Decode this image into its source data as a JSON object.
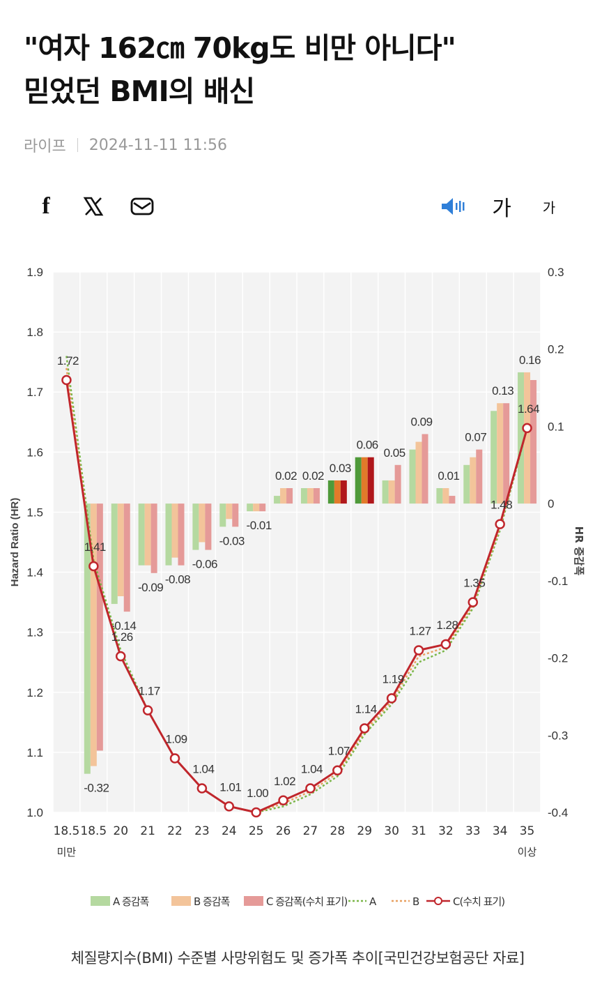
{
  "article": {
    "title_line1": "\"여자 162㎝ 70kg도 비만 아니다\"",
    "title_line2": "믿었던 BMI의 배신",
    "category": "라이프",
    "datetime": "2024-11-11 11:56"
  },
  "toolbar": {
    "facebook": "f",
    "x": "𝕏",
    "font_large": "가",
    "font_small": "가"
  },
  "caption": "체질량지수(BMI) 수준별 사망위험도 및 증가폭 추이[국민건강보험공단 자료]",
  "colors": {
    "a_bar": "#b5d9a0",
    "b_bar": "#f3c49a",
    "c_bar": "#e59a98",
    "line_a": "#7ab648",
    "line_b": "#e8a060",
    "line_c": "#c0262c"
  },
  "chart_data": {
    "type": "bar+line",
    "categories": [
      "18.5\n미만",
      "18.5",
      "20",
      "21",
      "22",
      "23",
      "24",
      "25",
      "26",
      "27",
      "28",
      "29",
      "30",
      "31",
      "32",
      "33",
      "34",
      "35\n이상"
    ],
    "ylabel": "Hazard Ratio (HR)",
    "y2label": "HR 증감폭",
    "ylim": [
      1.0,
      1.9
    ],
    "y2lim": [
      -0.4,
      0.3
    ],
    "yticks": [
      "1.0",
      "1.1",
      "1.2",
      "1.3",
      "1.4",
      "1.5",
      "1.6",
      "1.7",
      "1.8",
      "1.9"
    ],
    "y2ticks": [
      "-0.4",
      "-0.3",
      "-0.2",
      "-0.1",
      "0",
      "0.1",
      "0.2",
      "0.3"
    ],
    "bar_categories": [
      "18.5",
      "20",
      "21",
      "22",
      "23",
      "24",
      "25",
      "26",
      "27",
      "28",
      "29",
      "30",
      "31",
      "32",
      "33",
      "34",
      "35\n이상"
    ],
    "bars": {
      "A": [
        -0.35,
        -0.13,
        -0.08,
        -0.08,
        -0.06,
        -0.03,
        -0.01,
        0.01,
        0.02,
        0.03,
        0.06,
        0.03,
        0.07,
        0.02,
        0.05,
        0.12,
        0.17
      ],
      "B": [
        -0.34,
        -0.12,
        -0.08,
        -0.07,
        -0.05,
        -0.02,
        -0.01,
        0.02,
        0.02,
        0.03,
        0.06,
        0.03,
        0.08,
        0.02,
        0.06,
        0.13,
        0.17
      ],
      "C": [
        -0.32,
        -0.14,
        -0.09,
        -0.08,
        -0.06,
        -0.03,
        -0.01,
        0.02,
        0.02,
        0.03,
        0.06,
        0.05,
        0.09,
        0.01,
        0.07,
        0.13,
        0.16
      ]
    },
    "bar_labels": [
      "-0.32",
      "-0.14",
      "-0.09",
      "-0.08",
      "-0.06",
      "-0.03",
      "-0.01",
      "0.02",
      "0.02",
      "0.03",
      "0.06",
      "0.05",
      "0.09",
      "0.01",
      "0.07",
      "0.13",
      "0.16"
    ],
    "lines": {
      "A": [
        1.76,
        1.42,
        1.27,
        1.17,
        1.09,
        1.04,
        1.01,
        1.0,
        1.01,
        1.03,
        1.06,
        1.13,
        1.18,
        1.25,
        1.27,
        1.34,
        1.47,
        1.64
      ],
      "B": [
        1.74,
        1.41,
        1.26,
        1.17,
        1.09,
        1.04,
        1.01,
        1.0,
        1.015,
        1.035,
        1.065,
        1.135,
        1.185,
        1.26,
        1.275,
        1.345,
        1.475,
        1.64
      ],
      "C": [
        1.72,
        1.41,
        1.26,
        1.17,
        1.09,
        1.04,
        1.01,
        1.0,
        1.02,
        1.04,
        1.07,
        1.14,
        1.19,
        1.27,
        1.28,
        1.35,
        1.48,
        1.64
      ]
    },
    "line_labels": [
      "1.72",
      "1.41",
      "1.26",
      "1.17",
      "1.09",
      "1.04",
      "1.01",
      "1.00",
      "1.02",
      "1.04",
      "1.07",
      "1.14",
      "1.19",
      "1.27",
      "1.28",
      "1.35",
      "1.48",
      "1.64"
    ],
    "legend": [
      "A 증감폭",
      "B 증감폭",
      "C 증감폭(수치 표기)",
      "A",
      "B",
      "C(수치 표기)"
    ],
    "legend_position": "bottom",
    "grid": true
  }
}
